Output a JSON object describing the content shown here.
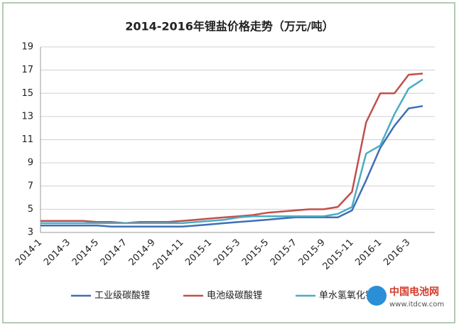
{
  "chart_data": {
    "type": "line",
    "title": "2014-2016年锂盐价格走势（万元/吨）",
    "categories": [
      "2014-1",
      null,
      "2014-3",
      null,
      "2014-5",
      null,
      "2014-7",
      null,
      "2014-9",
      null,
      "2014-11",
      null,
      "2015-1",
      null,
      "2015-3",
      null,
      "2015-5",
      null,
      "2015-7",
      null,
      "2015-9",
      null,
      "2015-11",
      null,
      "2016-1",
      null,
      "2016-3",
      null
    ],
    "series": [
      {
        "name": "工业级碳酸锂",
        "color": "#3f6fb6",
        "values": [
          3.6,
          3.6,
          3.6,
          3.6,
          3.6,
          3.5,
          3.5,
          3.5,
          3.5,
          3.5,
          3.5,
          3.6,
          3.7,
          3.8,
          3.9,
          4.0,
          4.1,
          4.2,
          4.3,
          4.3,
          4.3,
          4.3,
          4.9,
          7.5,
          10.3,
          12.2,
          13.7,
          13.9
        ]
      },
      {
        "name": "电池级碳酸锂",
        "color": "#c0504d",
        "values": [
          4.0,
          4.0,
          4.0,
          4.0,
          3.9,
          3.9,
          3.8,
          3.9,
          3.9,
          3.9,
          4.0,
          4.1,
          4.2,
          4.3,
          4.4,
          4.5,
          4.7,
          4.8,
          4.9,
          5.0,
          5.0,
          5.2,
          6.5,
          12.5,
          15.0,
          15.0,
          16.6,
          16.7
        ]
      },
      {
        "name": "单水氢氧化锂",
        "color": "#4bacc6",
        "values": [
          3.8,
          3.8,
          3.8,
          3.8,
          3.8,
          3.8,
          3.8,
          3.8,
          3.8,
          3.8,
          3.8,
          3.9,
          4.0,
          4.1,
          4.3,
          4.4,
          4.4,
          4.4,
          4.4,
          4.4,
          4.4,
          4.6,
          5.2,
          9.8,
          10.5,
          13.2,
          15.4,
          16.2
        ]
      }
    ],
    "ylim": [
      3,
      19
    ],
    "yticks": [
      3,
      5,
      7,
      9,
      11,
      13,
      15,
      17,
      19
    ],
    "grid": true,
    "legend": "bottom"
  },
  "watermark": {
    "brand": "中国电池网",
    "url": "www.itdcw.com"
  }
}
